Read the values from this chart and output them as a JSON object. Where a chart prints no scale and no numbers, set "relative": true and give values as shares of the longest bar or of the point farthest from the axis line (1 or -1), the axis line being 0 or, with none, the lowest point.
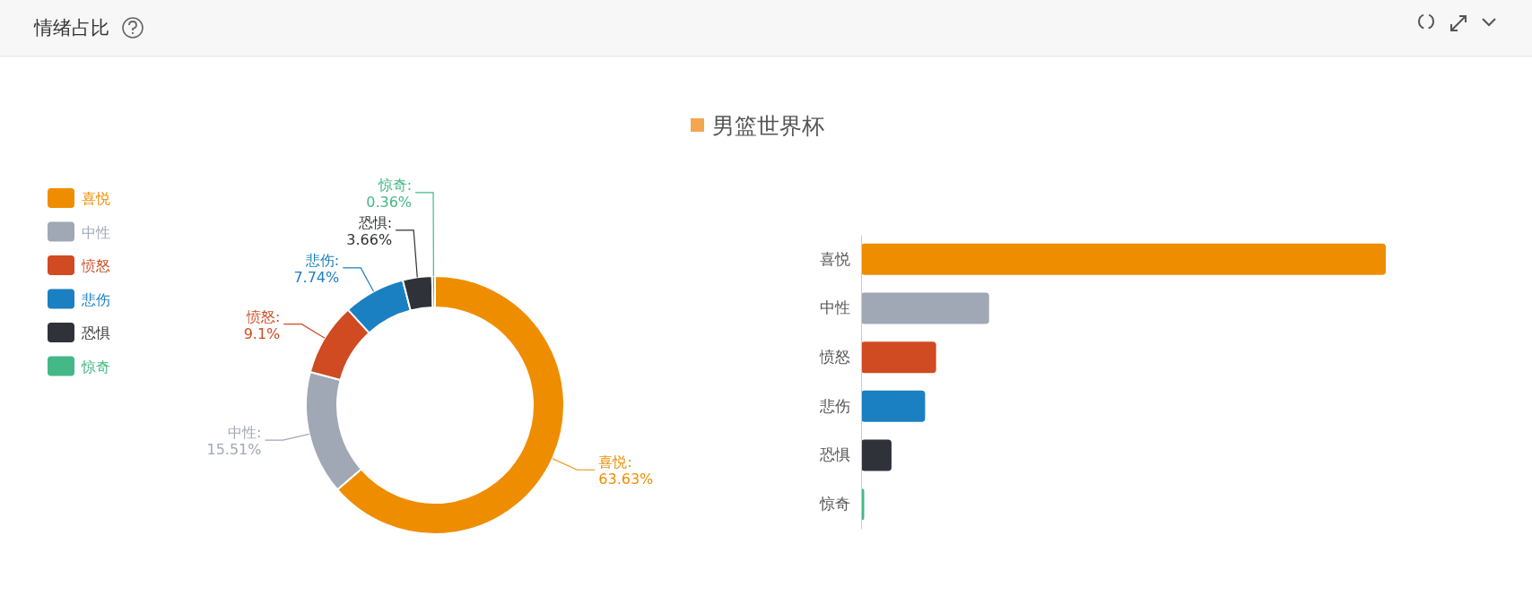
{
  "chart_data": [
    {
      "type": "donut",
      "title": "情绪占比",
      "categories": [
        "喜悦",
        "中性",
        "愤怒",
        "悲伤",
        "恐惧",
        "惊奇"
      ],
      "values": [
        63.63,
        15.51,
        9.1,
        7.74,
        3.66,
        0.36
      ],
      "colors": [
        "#ef8d00",
        "#a0a8b6",
        "#d04a22",
        "#1a80c2",
        "#2f3238",
        "#44b887"
      ],
      "legend": "top left",
      "value_labels": [
        "喜悦:\n63.63%",
        "中性:\n15.51%",
        "愤怒:\n9.1%",
        "悲伤:\n7.74%",
        "恐惧:\n3.66%",
        "惊奇:\n0.36%"
      ]
    },
    {
      "type": "bar",
      "orientation": "horizontal",
      "relative": true,
      "categories": [
        "喜悦",
        "中性",
        "愤怒",
        "悲伤",
        "恐惧",
        "惊奇"
      ],
      "series": [
        {
          "name": "男篮世界杯",
          "color": "#f3a64e",
          "values": [
            1,
            0.244,
            0.143,
            0.122,
            0.058,
            0.006
          ],
          "colors": [
            "#ef8d00",
            "#a0a8b6",
            "#d04a22",
            "#1a80c2",
            "#2f3238",
            "#44b887"
          ]
        }
      ],
      "legend": "top"
    }
  ]
}
